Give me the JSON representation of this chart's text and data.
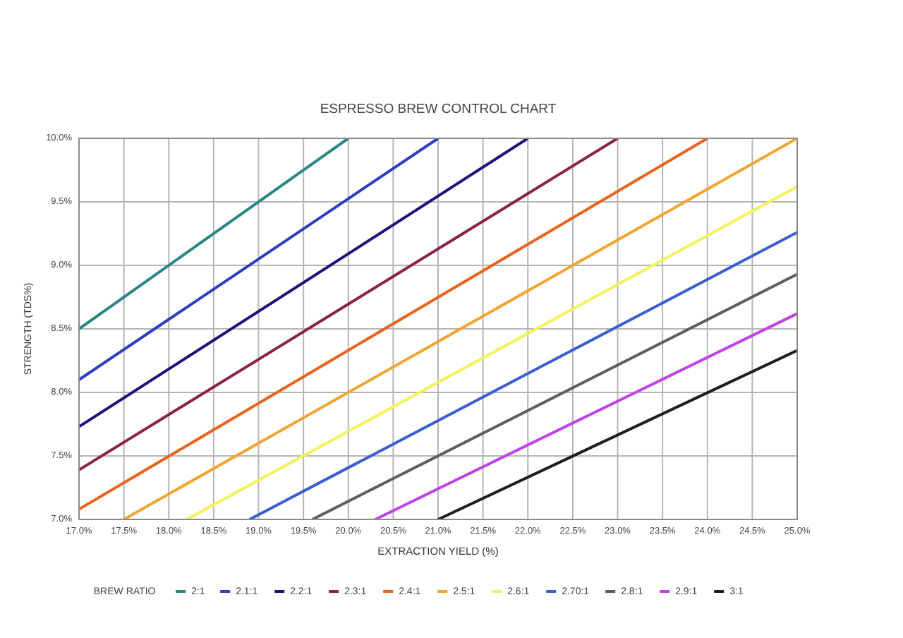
{
  "chart_data": {
    "type": "line",
    "title": "ESPRESSO BREW CONTROL CHART",
    "xlabel": "EXTRACTION YIELD (%)",
    "ylabel": "STRENGTH (TDS%)",
    "legend_title": "BREW RATIO",
    "legend": "bottom",
    "grid": true,
    "xlim": [
      17,
      25
    ],
    "ylim": [
      7,
      10
    ],
    "xticks": [
      {
        "value": 17,
        "label": "17.0%"
      },
      {
        "value": 17.5,
        "label": "17.5%"
      },
      {
        "value": 18,
        "label": "18.0%"
      },
      {
        "value": 18.5,
        "label": "18.5%"
      },
      {
        "value": 19,
        "label": "19.0%"
      },
      {
        "value": 19.5,
        "label": "19.5%"
      },
      {
        "value": 20,
        "label": "20.0%"
      },
      {
        "value": 20.5,
        "label": "20.5%"
      },
      {
        "value": 21,
        "label": "21.0%"
      },
      {
        "value": 21.5,
        "label": "21.5%"
      },
      {
        "value": 22,
        "label": "22.0%"
      },
      {
        "value": 22.5,
        "label": "22.5%"
      },
      {
        "value": 23,
        "label": "23.0%"
      },
      {
        "value": 23.5,
        "label": "23.5%"
      },
      {
        "value": 24,
        "label": "24.0%"
      },
      {
        "value": 24.5,
        "label": "24.5%"
      },
      {
        "value": 25,
        "label": "25.0%"
      }
    ],
    "yticks": [
      {
        "value": 7,
        "label": "7.0%"
      },
      {
        "value": 7.5,
        "label": "7.5%"
      },
      {
        "value": 8,
        "label": "8.0%"
      },
      {
        "value": 8.5,
        "label": "8.5%"
      },
      {
        "value": 9,
        "label": "9.0%"
      },
      {
        "value": 9.5,
        "label": "9.5%"
      },
      {
        "value": 10,
        "label": "10.0%"
      }
    ],
    "series": [
      {
        "name": "2:1",
        "color": "#2a8585",
        "x": [
          17,
          20
        ],
        "values": [
          8.5,
          10
        ]
      },
      {
        "name": "2.1:1",
        "color": "#2b3fbf",
        "x": [
          17,
          21
        ],
        "values": [
          8.1,
          10
        ]
      },
      {
        "name": "2.2:1",
        "color": "#20107a",
        "x": [
          17,
          22
        ],
        "values": [
          7.73,
          10
        ]
      },
      {
        "name": "2.3:1",
        "color": "#8a2445",
        "x": [
          17,
          23
        ],
        "values": [
          7.39,
          10
        ]
      },
      {
        "name": "2.4:1",
        "color": "#e8641e",
        "x": [
          17,
          24
        ],
        "values": [
          7.08,
          10
        ]
      },
      {
        "name": "2.5:1",
        "color": "#f0a530",
        "x": [
          17.5,
          25
        ],
        "values": [
          7,
          10
        ]
      },
      {
        "name": "2.6:1",
        "color": "#f2f25a",
        "x": [
          18.2,
          25
        ],
        "values": [
          7,
          9.62
        ]
      },
      {
        "name": "2.70:1",
        "color": "#3a5ed0",
        "x": [
          18.9,
          25
        ],
        "values": [
          7,
          9.26
        ]
      },
      {
        "name": "2.8:1",
        "color": "#5e5e5e",
        "x": [
          19.6,
          25
        ],
        "values": [
          7,
          8.93
        ]
      },
      {
        "name": "2.9:1",
        "color": "#c043e6",
        "x": [
          20.3,
          25
        ],
        "values": [
          7,
          8.62
        ]
      },
      {
        "name": "3:1",
        "color": "#1e1e1e",
        "x": [
          21,
          25
        ],
        "values": [
          7,
          8.33
        ]
      }
    ]
  }
}
